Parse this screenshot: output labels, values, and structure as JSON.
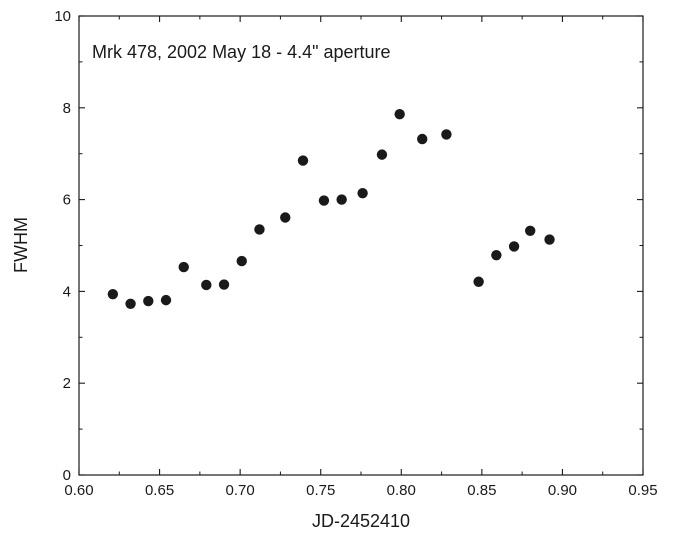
{
  "chart_data": {
    "type": "scatter",
    "title": "",
    "annotation": "Mrk 478, 2002 May 18 - 4.4\" aperture",
    "xlabel": "JD-2452410",
    "ylabel": "FWHM",
    "xlim": [
      0.6,
      0.95
    ],
    "ylim": [
      0,
      10
    ],
    "xticks": [
      "0.60",
      "0.65",
      "0.70",
      "0.75",
      "0.80",
      "0.85",
      "0.90",
      "0.95"
    ],
    "yticks": [
      "0",
      "2",
      "4",
      "6",
      "8",
      "10"
    ],
    "grid": false,
    "marker_color": "#1a1a1a",
    "points": [
      {
        "x": 0.621,
        "y": 3.94
      },
      {
        "x": 0.632,
        "y": 3.73
      },
      {
        "x": 0.643,
        "y": 3.79
      },
      {
        "x": 0.654,
        "y": 3.81
      },
      {
        "x": 0.665,
        "y": 4.53
      },
      {
        "x": 0.679,
        "y": 4.14
      },
      {
        "x": 0.69,
        "y": 4.15
      },
      {
        "x": 0.701,
        "y": 4.66
      },
      {
        "x": 0.712,
        "y": 5.35
      },
      {
        "x": 0.728,
        "y": 5.61
      },
      {
        "x": 0.739,
        "y": 6.85
      },
      {
        "x": 0.752,
        "y": 5.98
      },
      {
        "x": 0.763,
        "y": 6.0
      },
      {
        "x": 0.776,
        "y": 6.14
      },
      {
        "x": 0.788,
        "y": 6.98
      },
      {
        "x": 0.799,
        "y": 7.86
      },
      {
        "x": 0.813,
        "y": 7.32
      },
      {
        "x": 0.828,
        "y": 7.42
      },
      {
        "x": 0.848,
        "y": 4.21
      },
      {
        "x": 0.859,
        "y": 4.79
      },
      {
        "x": 0.87,
        "y": 4.98
      },
      {
        "x": 0.88,
        "y": 5.32
      },
      {
        "x": 0.892,
        "y": 5.13
      }
    ]
  }
}
